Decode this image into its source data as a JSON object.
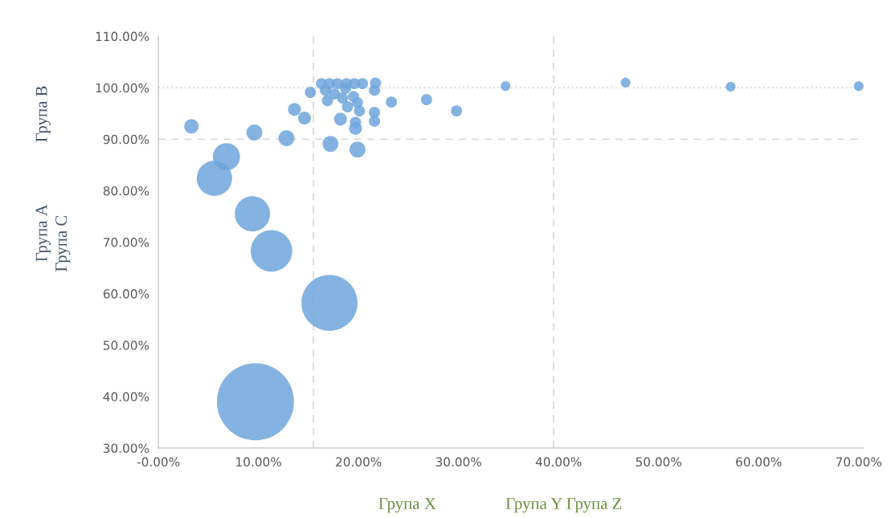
{
  "chart_data": {
    "type": "bubble",
    "color": "#6fa6dc",
    "x": [
      9.7,
      17.1,
      11.3,
      9.4,
      5.6,
      6.8,
      3.3,
      9.6,
      12.8,
      17.2,
      19.9,
      13.6,
      14.6,
      15.2,
      18.2,
      19.7,
      19.7,
      21.6,
      21.6,
      23.3,
      26.8,
      29.8,
      34.7,
      46.7,
      57.2,
      70.0,
      16.3,
      17.1,
      17.9,
      18.8,
      19.6,
      20.4,
      21.7,
      21.6,
      16.7,
      17.6,
      18.4,
      16.9,
      19.5,
      19.9,
      18.9,
      20.1,
      18.7
    ],
    "values": [
      39.0,
      58.2,
      68.3,
      75.5,
      82.4,
      86.6,
      92.5,
      91.3,
      90.2,
      89.1,
      88.0,
      95.8,
      94.1,
      99.1,
      93.9,
      92.1,
      93.3,
      95.2,
      93.5,
      97.2,
      97.7,
      95.5,
      100.3,
      101.0,
      100.2,
      100.3,
      100.8,
      100.8,
      100.8,
      100.8,
      100.8,
      100.8,
      100.9,
      99.5,
      99.5,
      98.8,
      98.0,
      97.5,
      98.3,
      97.1,
      96.3,
      95.5,
      99.9
    ],
    "sizes": [
      1,
      0.53,
      0.29,
      0.21,
      0.21,
      0.125,
      0.035,
      0.043,
      0.043,
      0.043,
      0.043,
      0.028,
      0.028,
      0.021,
      0.028,
      0.028,
      0.021,
      0.021,
      0.021,
      0.021,
      0.021,
      0.021,
      0.016,
      0.016,
      0.016,
      0.016,
      0.021,
      0.021,
      0.021,
      0.021,
      0.021,
      0.021,
      0.021,
      0.021,
      0.021,
      0.021,
      0.021,
      0.021,
      0.021,
      0.021,
      0.021,
      0.021,
      0.021
    ],
    "xlim": [
      0,
      70.5
    ],
    "ylim": [
      30,
      110
    ],
    "xticks": [
      {
        "value": 0,
        "label": "-0.00%"
      },
      {
        "value": 10,
        "label": "10.00%"
      },
      {
        "value": 20,
        "label": "20.00%"
      },
      {
        "value": 30,
        "label": "30.00%"
      },
      {
        "value": 40,
        "label": "40.00%"
      },
      {
        "value": 50,
        "label": "50.00%"
      },
      {
        "value": 60,
        "label": "60.00%"
      },
      {
        "value": 70,
        "label": "70.00%"
      }
    ],
    "yticks": [
      {
        "value": 30,
        "label": "30.00%"
      },
      {
        "value": 40,
        "label": "40.00%"
      },
      {
        "value": 50,
        "label": "50.00%"
      },
      {
        "value": 60,
        "label": "60.00%"
      },
      {
        "value": 70,
        "label": "70.00%"
      },
      {
        "value": 80,
        "label": "80.00%"
      },
      {
        "value": 90,
        "label": "90.00%"
      },
      {
        "value": 100,
        "label": "100.00%"
      },
      {
        "value": 110,
        "label": "110.00%"
      }
    ],
    "ref_lines": [
      {
        "axis": "y",
        "value": 100,
        "line_style": "dotted",
        "color": "#d9d9d9"
      },
      {
        "axis": "y",
        "value": 90,
        "line_style": "dashed",
        "color": "#d9d9d9"
      },
      {
        "axis": "x",
        "value": 15.5,
        "line_style": "dashed",
        "color": "#d9d9d9"
      },
      {
        "axis": "x",
        "value": 39.5,
        "line_style": "dashed",
        "color": "#d9d9d9"
      }
    ],
    "annotations": [
      "Група В",
      "Група А",
      "Група С",
      "Група X",
      "Група Y Група Z"
    ],
    "grid": false,
    "legend": false
  }
}
